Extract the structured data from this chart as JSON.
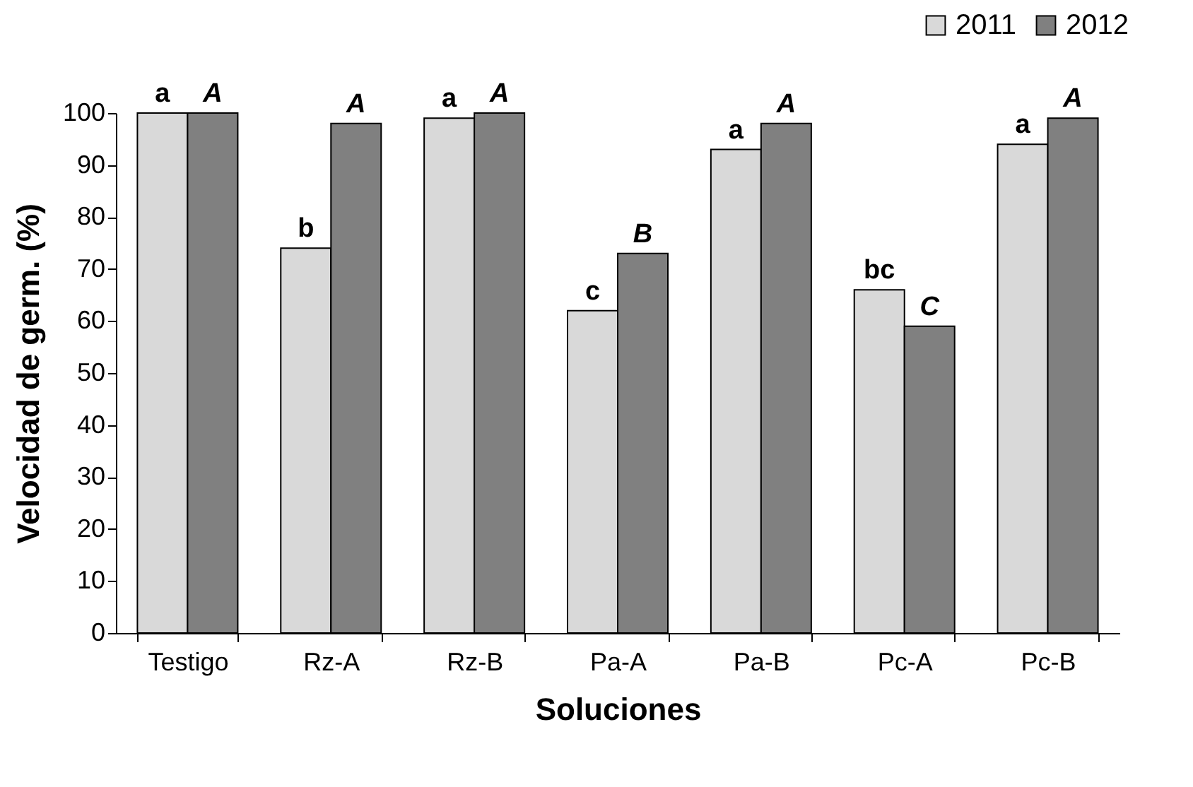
{
  "chart_data": {
    "type": "bar",
    "xlabel": "Soluciones",
    "ylabel": "Velocidad de germ. (%)",
    "categories": [
      "Testigo",
      "Rz-A",
      "Rz-B",
      "Pa-A",
      "Pa-B",
      "Pc-A",
      "Pc-B"
    ],
    "series": [
      {
        "name": "2011",
        "color": "#d9d9d9",
        "values": [
          100,
          74,
          99,
          62,
          93,
          66,
          94
        ],
        "value_labels": [
          "a",
          "b",
          "a",
          "c",
          "a",
          "bc",
          "a"
        ]
      },
      {
        "name": "2012",
        "color": "#808080",
        "values": [
          100,
          98,
          100,
          73,
          98,
          59,
          99
        ],
        "value_labels": [
          "A",
          "A",
          "A",
          "B",
          "A",
          "C",
          "A"
        ]
      }
    ],
    "ylim": [
      0,
      100
    ],
    "yticks": [
      0,
      10,
      20,
      30,
      40,
      50,
      60,
      70,
      80,
      90,
      100
    ],
    "grid": false,
    "legend": "top right"
  }
}
